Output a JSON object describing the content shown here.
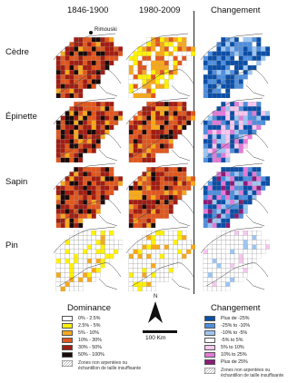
{
  "columns": {
    "col1": "1846-1900",
    "col2": "1980-2009",
    "col3": "Changement"
  },
  "rows": {
    "r1": "Cèdre",
    "r2": "Épinette",
    "r3": "Sapin",
    "r4": "Pin"
  },
  "place_label": "Rimouski",
  "north_label": "N",
  "scale_label": "100 Km",
  "legend_dominance": {
    "title": "Dominance",
    "items": [
      {
        "label": "0% - 2.5%",
        "color": "#ffffff"
      },
      {
        "label": "2.5% - 5%",
        "color": "#fff200"
      },
      {
        "label": "5% - 10%",
        "color": "#f7a81b"
      },
      {
        "label": "10% - 30%",
        "color": "#e0571e"
      },
      {
        "label": "30% - 50%",
        "color": "#a11d12"
      },
      {
        "label": "50% - 100%",
        "color": "#1a0a08"
      }
    ],
    "note_line1": "Zones non arpentées ou",
    "note_line2": "échantillon de taille insuffisante"
  },
  "legend_change": {
    "title": "Changement",
    "items": [
      {
        "label": "Plus de -25%",
        "color": "#0b4fa8"
      },
      {
        "label": "-25% to -10%",
        "color": "#4f8fde"
      },
      {
        "label": "-10% to -5%",
        "color": "#9cc6f2"
      },
      {
        "label": "-5% to 5%",
        "color": "#ffffff"
      },
      {
        "label": "5% to 10%",
        "color": "#f7c7ef"
      },
      {
        "label": "10% to 25%",
        "color": "#e37ad8"
      },
      {
        "label": "Plus de 25%",
        "color": "#8a1c78"
      }
    ],
    "note_line1": "Zones non arpentées ou",
    "note_line2": "échantillon de taille insuffisante"
  }
}
